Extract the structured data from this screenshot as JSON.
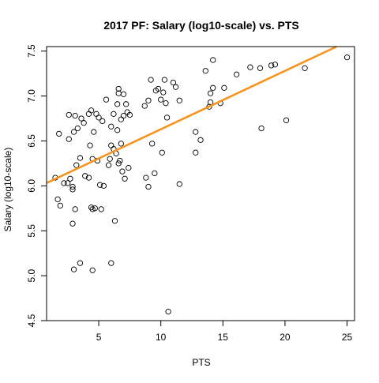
{
  "chart_data": {
    "type": "scatter",
    "title": "2017 PF: Salary (log10-scale) vs. PTS",
    "xlabel": "PTS",
    "ylabel": "Salary (log10-scale)",
    "xlim": [
      0.8,
      25.6
    ],
    "ylim": [
      4.5,
      7.55
    ],
    "xticks": [
      5,
      10,
      15,
      20,
      25
    ],
    "yticks": [
      4.5,
      5.0,
      5.5,
      6.0,
      6.5,
      7.0,
      7.5
    ],
    "ytick_labels": [
      "4.5",
      "5.0",
      "5.5",
      "6.0",
      "6.5",
      "7.0",
      "7.5"
    ],
    "grid": false,
    "fit_line": {
      "intercept": 5.98,
      "slope": 0.065,
      "color": "#f7941d"
    },
    "point_style": "open-circle",
    "points": [
      [
        1.5,
        6.09
      ],
      [
        1.7,
        5.85
      ],
      [
        1.8,
        6.58
      ],
      [
        1.9,
        5.78
      ],
      [
        2.2,
        6.03
      ],
      [
        2.5,
        6.03
      ],
      [
        2.6,
        6.79
      ],
      [
        2.6,
        6.52
      ],
      [
        2.7,
        6.08
      ],
      [
        2.9,
        5.96
      ],
      [
        2.9,
        5.99
      ],
      [
        2.9,
        5.58
      ],
      [
        3.0,
        5.07
      ],
      [
        3.0,
        6.6
      ],
      [
        3.1,
        6.78
      ],
      [
        3.1,
        5.74
      ],
      [
        3.2,
        6.23
      ],
      [
        3.3,
        6.64
      ],
      [
        3.5,
        5.14
      ],
      [
        3.5,
        6.31
      ],
      [
        3.6,
        6.75
      ],
      [
        3.8,
        6.7
      ],
      [
        3.9,
        6.11
      ],
      [
        4.2,
        6.8
      ],
      [
        4.2,
        6.09
      ],
      [
        4.3,
        6.45
      ],
      [
        4.4,
        5.76
      ],
      [
        4.4,
        6.84
      ],
      [
        4.5,
        5.74
      ],
      [
        4.5,
        5.06
      ],
      [
        4.5,
        6.3
      ],
      [
        4.6,
        6.6
      ],
      [
        4.7,
        5.75
      ],
      [
        4.8,
        6.8
      ],
      [
        4.9,
        6.28
      ],
      [
        5.0,
        6.76
      ],
      [
        5.1,
        6.01
      ],
      [
        5.2,
        5.74
      ],
      [
        5.3,
        6.72
      ],
      [
        5.4,
        6.0
      ],
      [
        5.6,
        6.96
      ],
      [
        5.8,
        6.23
      ],
      [
        5.9,
        6.3
      ],
      [
        6.0,
        5.14
      ],
      [
        6.0,
        6.45
      ],
      [
        6.0,
        6.66
      ],
      [
        6.2,
        6.8
      ],
      [
        6.2,
        6.41
      ],
      [
        6.3,
        5.61
      ],
      [
        6.4,
        6.36
      ],
      [
        6.5,
        6.62
      ],
      [
        6.5,
        6.91
      ],
      [
        6.6,
        7.03
      ],
      [
        6.6,
        7.08
      ],
      [
        6.6,
        6.25
      ],
      [
        6.7,
        6.28
      ],
      [
        6.8,
        6.47
      ],
      [
        6.8,
        6.74
      ],
      [
        6.9,
        6.16
      ],
      [
        7.0,
        6.78
      ],
      [
        7.0,
        7.02
      ],
      [
        7.1,
        6.08
      ],
      [
        7.2,
        6.91
      ],
      [
        7.3,
        6.82
      ],
      [
        7.4,
        6.2
      ],
      [
        7.5,
        6.79
      ],
      [
        8.7,
        6.89
      ],
      [
        8.8,
        6.09
      ],
      [
        9.0,
        5.99
      ],
      [
        9.0,
        6.95
      ],
      [
        9.2,
        7.18
      ],
      [
        9.3,
        6.47
      ],
      [
        9.5,
        6.14
      ],
      [
        9.6,
        7.06
      ],
      [
        9.8,
        7.08
      ],
      [
        10.0,
        6.96
      ],
      [
        10.1,
        6.37
      ],
      [
        10.2,
        7.04
      ],
      [
        10.3,
        7.18
      ],
      [
        10.4,
        6.92
      ],
      [
        10.5,
        6.76
      ],
      [
        10.6,
        4.6
      ],
      [
        11.0,
        7.15
      ],
      [
        11.2,
        7.1
      ],
      [
        11.5,
        6.02
      ],
      [
        11.5,
        6.95
      ],
      [
        12.8,
        6.37
      ],
      [
        12.8,
        6.6
      ],
      [
        13.2,
        6.51
      ],
      [
        13.6,
        7.28
      ],
      [
        13.9,
        6.88
      ],
      [
        14.0,
        6.93
      ],
      [
        14.0,
        7.03
      ],
      [
        14.2,
        7.09
      ],
      [
        14.2,
        7.4
      ],
      [
        14.8,
        6.92
      ],
      [
        15.1,
        7.09
      ],
      [
        16.1,
        7.24
      ],
      [
        17.2,
        7.32
      ],
      [
        18.0,
        7.31
      ],
      [
        18.1,
        6.64
      ],
      [
        18.9,
        7.34
      ],
      [
        19.2,
        7.35
      ],
      [
        20.1,
        6.73
      ],
      [
        21.6,
        7.31
      ],
      [
        25.0,
        7.43
      ]
    ]
  }
}
